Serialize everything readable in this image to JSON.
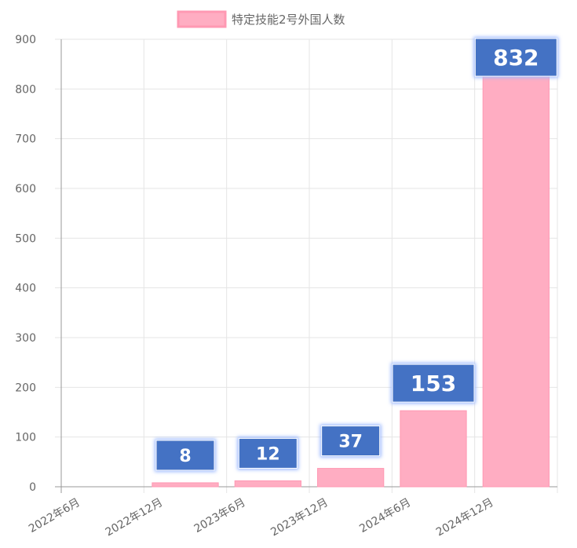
{
  "chart_data": {
    "type": "bar",
    "categories": [
      "2022年6月",
      "2022年12月",
      "2023年6月",
      "2023年12月",
      "2024年6月",
      "2024年12月"
    ],
    "series": [
      {
        "name": "特定技能2号外国人数",
        "values": [
          0,
          8,
          12,
          37,
          153,
          832
        ]
      }
    ],
    "data_labels": [
      "8",
      "12",
      "37",
      "153",
      "832"
    ],
    "ylim": [
      0,
      900
    ],
    "yticks": [
      "0",
      "100",
      "200",
      "300",
      "400",
      "500",
      "600",
      "700",
      "800",
      "900"
    ],
    "grid": true,
    "legend_position": "top-center",
    "colors": {
      "bar_fill": "#ffadc2",
      "bar_border": "#ff99b3",
      "label_box": "#4472c4",
      "label_glow": "#9ab8ff",
      "grid": "#e5e5e5",
      "axis": "#999999",
      "text": "#666666"
    }
  }
}
